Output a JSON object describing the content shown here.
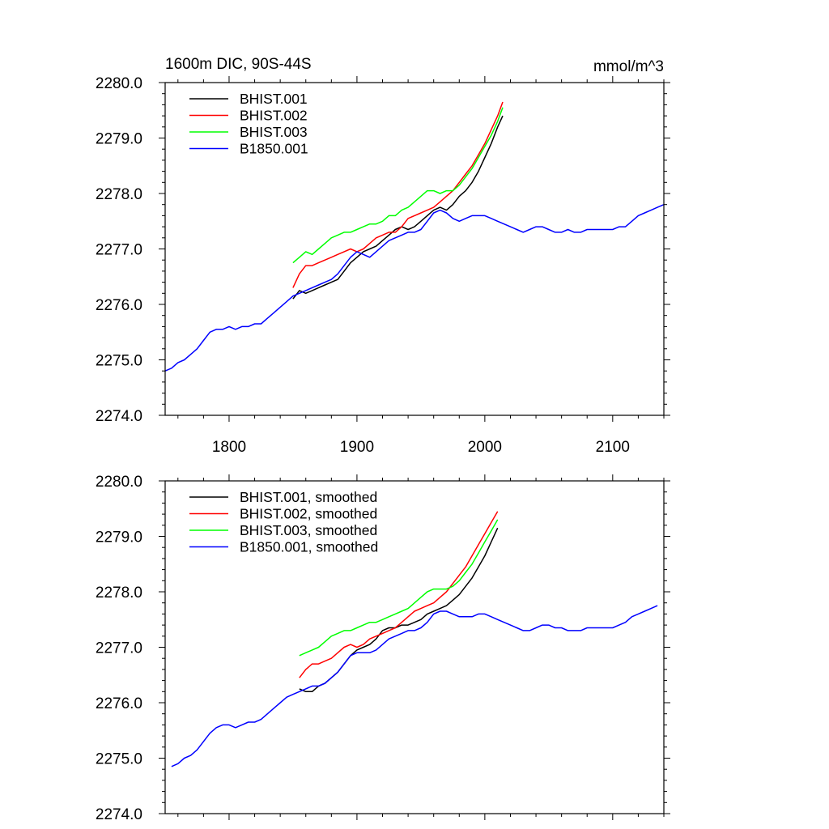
{
  "chart_data": [
    {
      "type": "line",
      "title": "1600m DIC, 90S-44S",
      "units": "mmol/m^3",
      "xlim": [
        1750,
        2140
      ],
      "ylim": [
        2274.0,
        2280.0
      ],
      "x_ticks": [
        1800,
        1900,
        2000,
        2100
      ],
      "y_ticks": [
        "2274.0",
        "2275.0",
        "2276.0",
        "2277.0",
        "2278.0",
        "2279.0",
        "2280.0"
      ],
      "grid": false,
      "legend_position": "top-left",
      "series": [
        {
          "name": "BHIST.001",
          "color": "#000000",
          "x": [
            1850,
            1855,
            1860,
            1865,
            1870,
            1875,
            1880,
            1885,
            1890,
            1895,
            1900,
            1905,
            1910,
            1915,
            1920,
            1925,
            1930,
            1935,
            1940,
            1945,
            1950,
            1955,
            1960,
            1965,
            1970,
            1975,
            1980,
            1985,
            1990,
            1995,
            2000,
            2005,
            2010,
            2014
          ],
          "y": [
            2276.1,
            2276.25,
            2276.2,
            2276.25,
            2276.3,
            2276.35,
            2276.4,
            2276.45,
            2276.6,
            2276.75,
            2276.85,
            2276.95,
            2277.0,
            2277.05,
            2277.15,
            2277.25,
            2277.35,
            2277.4,
            2277.35,
            2277.4,
            2277.5,
            2277.6,
            2277.7,
            2277.75,
            2277.7,
            2277.8,
            2277.95,
            2278.05,
            2278.2,
            2278.4,
            2278.65,
            2278.9,
            2279.2,
            2279.4
          ]
        },
        {
          "name": "BHIST.002",
          "color": "#ff0000",
          "x": [
            1850,
            1855,
            1860,
            1865,
            1870,
            1875,
            1880,
            1885,
            1890,
            1895,
            1900,
            1905,
            1910,
            1915,
            1920,
            1925,
            1930,
            1935,
            1940,
            1945,
            1950,
            1955,
            1960,
            1965,
            1970,
            1975,
            1980,
            1985,
            1990,
            1995,
            2000,
            2005,
            2010,
            2014
          ],
          "y": [
            2276.3,
            2276.55,
            2276.7,
            2276.7,
            2276.75,
            2276.8,
            2276.85,
            2276.9,
            2276.95,
            2277.0,
            2276.95,
            2277.0,
            2277.1,
            2277.2,
            2277.25,
            2277.3,
            2277.3,
            2277.4,
            2277.55,
            2277.6,
            2277.65,
            2277.7,
            2277.75,
            2277.85,
            2277.95,
            2278.05,
            2278.2,
            2278.35,
            2278.5,
            2278.7,
            2278.9,
            2279.15,
            2279.4,
            2279.65
          ]
        },
        {
          "name": "BHIST.003",
          "color": "#00ff00",
          "x": [
            1850,
            1855,
            1860,
            1865,
            1870,
            1875,
            1880,
            1885,
            1890,
            1895,
            1900,
            1905,
            1910,
            1915,
            1920,
            1925,
            1930,
            1935,
            1940,
            1945,
            1950,
            1955,
            1960,
            1965,
            1970,
            1975,
            1980,
            1985,
            1990,
            1995,
            2000,
            2005,
            2010,
            2014
          ],
          "y": [
            2276.75,
            2276.85,
            2276.95,
            2276.9,
            2277.0,
            2277.1,
            2277.2,
            2277.25,
            2277.3,
            2277.3,
            2277.35,
            2277.4,
            2277.45,
            2277.45,
            2277.5,
            2277.6,
            2277.6,
            2277.7,
            2277.75,
            2277.85,
            2277.95,
            2278.05,
            2278.05,
            2278.0,
            2278.05,
            2278.05,
            2278.15,
            2278.3,
            2278.45,
            2278.65,
            2278.85,
            2279.05,
            2279.3,
            2279.55
          ]
        },
        {
          "name": "B1850.001",
          "color": "#0000ff",
          "x": [
            1750,
            1755,
            1760,
            1765,
            1770,
            1775,
            1780,
            1785,
            1790,
            1795,
            1800,
            1805,
            1810,
            1815,
            1820,
            1825,
            1830,
            1835,
            1840,
            1845,
            1850,
            1855,
            1860,
            1865,
            1870,
            1875,
            1880,
            1885,
            1890,
            1895,
            1900,
            1905,
            1910,
            1915,
            1920,
            1925,
            1930,
            1935,
            1940,
            1945,
            1950,
            1955,
            1960,
            1965,
            1970,
            1975,
            1980,
            1985,
            1990,
            1995,
            2000,
            2005,
            2010,
            2015,
            2020,
            2025,
            2030,
            2035,
            2040,
            2045,
            2050,
            2055,
            2060,
            2065,
            2070,
            2075,
            2080,
            2085,
            2090,
            2095,
            2100,
            2105,
            2110,
            2115,
            2120,
            2125,
            2130,
            2135,
            2140
          ],
          "y": [
            2274.8,
            2274.85,
            2274.95,
            2275.0,
            2275.1,
            2275.2,
            2275.35,
            2275.5,
            2275.55,
            2275.55,
            2275.6,
            2275.55,
            2275.6,
            2275.6,
            2275.65,
            2275.65,
            2275.75,
            2275.85,
            2275.95,
            2276.05,
            2276.15,
            2276.2,
            2276.25,
            2276.3,
            2276.35,
            2276.4,
            2276.45,
            2276.55,
            2276.7,
            2276.85,
            2276.95,
            2276.9,
            2276.85,
            2276.95,
            2277.05,
            2277.15,
            2277.2,
            2277.25,
            2277.3,
            2277.3,
            2277.35,
            2277.5,
            2277.65,
            2277.7,
            2277.65,
            2277.55,
            2277.5,
            2277.55,
            2277.6,
            2277.6,
            2277.6,
            2277.55,
            2277.5,
            2277.45,
            2277.4,
            2277.35,
            2277.3,
            2277.35,
            2277.4,
            2277.4,
            2277.35,
            2277.3,
            2277.3,
            2277.35,
            2277.3,
            2277.3,
            2277.35,
            2277.35,
            2277.35,
            2277.35,
            2277.35,
            2277.4,
            2277.4,
            2277.5,
            2277.6,
            2277.65,
            2277.7,
            2277.75,
            2277.8
          ]
        }
      ]
    },
    {
      "type": "line",
      "xlim": [
        1750,
        2140
      ],
      "ylim": [
        2274.0,
        2280.0
      ],
      "y_ticks": [
        "2274.0",
        "2275.0",
        "2276.0",
        "2277.0",
        "2278.0",
        "2279.0",
        "2280.0"
      ],
      "grid": false,
      "legend_position": "top-left",
      "series": [
        {
          "name": "BHIST.001, smoothed",
          "color": "#000000",
          "x": [
            1855,
            1860,
            1865,
            1870,
            1875,
            1880,
            1885,
            1890,
            1895,
            1900,
            1905,
            1910,
            1915,
            1920,
            1925,
            1930,
            1935,
            1940,
            1945,
            1950,
            1955,
            1960,
            1965,
            1970,
            1975,
            1980,
            1985,
            1990,
            1995,
            2000,
            2005,
            2010
          ],
          "y": [
            2276.25,
            2276.2,
            2276.2,
            2276.3,
            2276.35,
            2276.45,
            2276.55,
            2276.7,
            2276.85,
            2276.95,
            2277.0,
            2277.05,
            2277.15,
            2277.3,
            2277.35,
            2277.35,
            2277.4,
            2277.4,
            2277.45,
            2277.5,
            2277.6,
            2277.65,
            2277.7,
            2277.75,
            2277.85,
            2277.95,
            2278.1,
            2278.25,
            2278.45,
            2278.65,
            2278.9,
            2279.15
          ]
        },
        {
          "name": "BHIST.002, smoothed",
          "color": "#ff0000",
          "x": [
            1855,
            1860,
            1865,
            1870,
            1875,
            1880,
            1885,
            1890,
            1895,
            1900,
            1905,
            1910,
            1915,
            1920,
            1925,
            1930,
            1935,
            1940,
            1945,
            1950,
            1955,
            1960,
            1965,
            1970,
            1975,
            1980,
            1985,
            1990,
            1995,
            2000,
            2005,
            2010
          ],
          "y": [
            2276.45,
            2276.6,
            2276.7,
            2276.7,
            2276.75,
            2276.8,
            2276.9,
            2277.0,
            2277.05,
            2277.0,
            2277.05,
            2277.15,
            2277.2,
            2277.25,
            2277.3,
            2277.35,
            2277.45,
            2277.55,
            2277.65,
            2277.7,
            2277.75,
            2277.8,
            2277.9,
            2278.0,
            2278.15,
            2278.3,
            2278.45,
            2278.65,
            2278.85,
            2279.05,
            2279.25,
            2279.45
          ]
        },
        {
          "name": "BHIST.003, smoothed",
          "color": "#00ff00",
          "x": [
            1855,
            1860,
            1865,
            1870,
            1875,
            1880,
            1885,
            1890,
            1895,
            1900,
            1905,
            1910,
            1915,
            1920,
            1925,
            1930,
            1935,
            1940,
            1945,
            1950,
            1955,
            1960,
            1965,
            1970,
            1975,
            1980,
            1985,
            1990,
            1995,
            2000,
            2005,
            2010
          ],
          "y": [
            2276.85,
            2276.9,
            2276.95,
            2277.0,
            2277.1,
            2277.2,
            2277.25,
            2277.3,
            2277.3,
            2277.35,
            2277.4,
            2277.45,
            2277.45,
            2277.5,
            2277.55,
            2277.6,
            2277.65,
            2277.7,
            2277.8,
            2277.9,
            2278.0,
            2278.05,
            2278.05,
            2278.05,
            2278.1,
            2278.2,
            2278.35,
            2278.5,
            2278.7,
            2278.9,
            2279.1,
            2279.3
          ]
        },
        {
          "name": "B1850.001, smoothed",
          "color": "#0000ff",
          "x": [
            1755,
            1760,
            1765,
            1770,
            1775,
            1780,
            1785,
            1790,
            1795,
            1800,
            1805,
            1810,
            1815,
            1820,
            1825,
            1830,
            1835,
            1840,
            1845,
            1850,
            1855,
            1860,
            1865,
            1870,
            1875,
            1880,
            1885,
            1890,
            1895,
            1900,
            1905,
            1910,
            1915,
            1920,
            1925,
            1930,
            1935,
            1940,
            1945,
            1950,
            1955,
            1960,
            1965,
            1970,
            1975,
            1980,
            1985,
            1990,
            1995,
            2000,
            2005,
            2010,
            2015,
            2020,
            2025,
            2030,
            2035,
            2040,
            2045,
            2050,
            2055,
            2060,
            2065,
            2070,
            2075,
            2080,
            2085,
            2090,
            2095,
            2100,
            2105,
            2110,
            2115,
            2120,
            2125,
            2130,
            2135
          ],
          "y": [
            2274.85,
            2274.9,
            2275.0,
            2275.05,
            2275.15,
            2275.3,
            2275.45,
            2275.55,
            2275.6,
            2275.6,
            2275.55,
            2275.6,
            2275.65,
            2275.65,
            2275.7,
            2275.8,
            2275.9,
            2276.0,
            2276.1,
            2276.15,
            2276.2,
            2276.25,
            2276.3,
            2276.3,
            2276.35,
            2276.45,
            2276.55,
            2276.7,
            2276.85,
            2276.9,
            2276.9,
            2276.9,
            2276.95,
            2277.05,
            2277.15,
            2277.2,
            2277.25,
            2277.3,
            2277.3,
            2277.35,
            2277.45,
            2277.6,
            2277.65,
            2277.65,
            2277.6,
            2277.55,
            2277.55,
            2277.55,
            2277.6,
            2277.6,
            2277.55,
            2277.5,
            2277.45,
            2277.4,
            2277.35,
            2277.3,
            2277.3,
            2277.35,
            2277.4,
            2277.4,
            2277.35,
            2277.35,
            2277.3,
            2277.3,
            2277.3,
            2277.35,
            2277.35,
            2277.35,
            2277.35,
            2277.35,
            2277.4,
            2277.45,
            2277.55,
            2277.6,
            2277.65,
            2277.7,
            2277.75
          ]
        }
      ]
    }
  ]
}
